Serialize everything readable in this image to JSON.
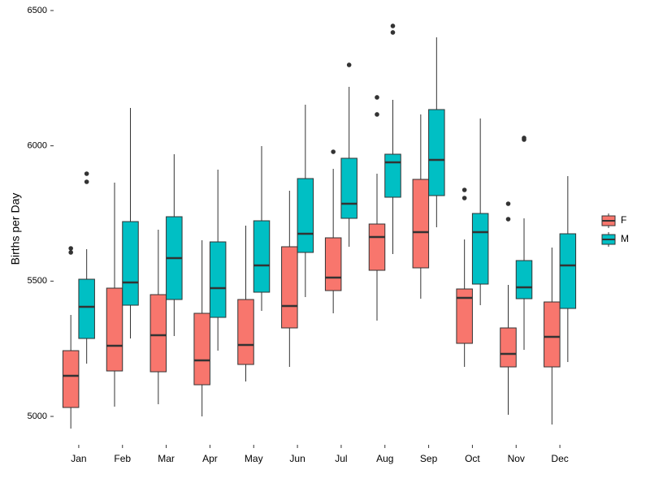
{
  "chart_data": {
    "type": "boxplot",
    "y_label": "Births per Day",
    "categories": [
      "Jan",
      "Feb",
      "Mar",
      "Apr",
      "May",
      "Jun",
      "Jul",
      "Aug",
      "Sep",
      "Oct",
      "Nov",
      "Dec"
    ],
    "ylim": [
      4881,
      6517
    ],
    "yticks": [
      5000,
      5500,
      6000,
      6500
    ],
    "grid": false,
    "legend": "right",
    "series": [
      {
        "name": "F",
        "color": "#F8766D",
        "min": [
          4955,
          5036,
          5045,
          5000,
          5129,
          5183,
          5381,
          5354,
          5435,
          5183,
          5006,
          4970
        ],
        "q1": [
          5033,
          5168,
          5165,
          5117,
          5192,
          5327,
          5465,
          5540,
          5549,
          5270,
          5183,
          5183
        ],
        "median": [
          5150,
          5261,
          5300,
          5207,
          5264,
          5408,
          5513,
          5663,
          5681,
          5438,
          5231,
          5294
        ],
        "q3": [
          5243,
          5474,
          5450,
          5381,
          5432,
          5627,
          5660,
          5711,
          5876,
          5471,
          5327,
          5423
        ],
        "max": [
          5375,
          5864,
          5690,
          5651,
          5705,
          5834,
          5915,
          5897,
          6116,
          5654,
          5486,
          5624
        ],
        "outliers": [
          [
            5621,
            5606
          ],
          [],
          [],
          [],
          [],
          [],
          [
            5978
          ],
          [
            6179,
            6116
          ],
          [],
          [
            5837,
            5807
          ],
          [
            5786,
            5729
          ],
          []
        ]
      },
      {
        "name": "M",
        "color": "#00BFC4",
        "min": [
          5195,
          5288,
          5297,
          5243,
          5390,
          5441,
          5627,
          5600,
          5699,
          5411,
          5246,
          5201
        ],
        "q1": [
          5288,
          5411,
          5432,
          5366,
          5459,
          5606,
          5732,
          5810,
          5816,
          5489,
          5435,
          5399
        ],
        "median": [
          5405,
          5495,
          5585,
          5474,
          5558,
          5675,
          5786,
          5939,
          5948,
          5681,
          5477,
          5558
        ],
        "q3": [
          5507,
          5720,
          5738,
          5645,
          5723,
          5879,
          5954,
          5969,
          6134,
          5750,
          5576,
          5675
        ],
        "max": [
          5618,
          6140,
          5969,
          5912,
          5999,
          6152,
          6218,
          6170,
          6401,
          6101,
          5732,
          5888
        ],
        "outliers": [
          [
            5897,
            5867
          ],
          [],
          [],
          [],
          [],
          [],
          [
            6299
          ],
          [
            6443,
            6419
          ],
          [],
          [],
          [
            6029,
            6023
          ],
          []
        ]
      }
    ]
  }
}
